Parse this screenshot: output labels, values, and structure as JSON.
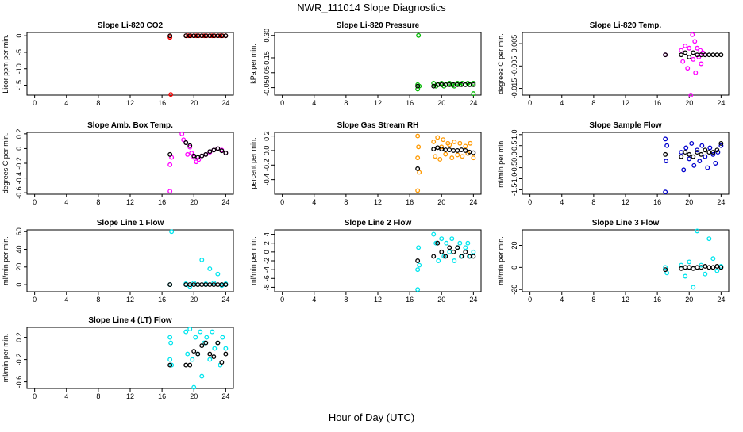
{
  "figure": {
    "title": "NWR_111014  Slope Diagnostics",
    "xlabel": "Hour of Day (UTC)"
  },
  "chart_data": [
    {
      "type": "scatter",
      "title": "Slope Li-820 CO2",
      "ylabel": "Licor ppm per min.",
      "xlim": [
        0,
        24
      ],
      "xticks": [
        0,
        4,
        8,
        12,
        16,
        20,
        24
      ],
      "ylim": [
        -18,
        1
      ],
      "yticks": [
        0,
        -5,
        -10,
        -15
      ],
      "series": [
        {
          "name": "samples",
          "color": "#ff0000",
          "x": [
            17,
            17,
            17.1,
            19,
            19.3,
            19.6,
            20,
            20.3,
            20.6,
            21,
            21.3,
            21.6,
            22,
            22.3,
            22.6,
            23,
            23.3,
            23.6,
            24
          ],
          "y": [
            -0.1,
            -0.5,
            -17.8,
            0,
            0,
            0,
            0,
            0,
            0,
            0,
            0,
            0,
            0,
            0,
            0,
            0,
            0,
            0,
            0
          ]
        },
        {
          "name": "mean",
          "color": "#000000",
          "x": [
            17,
            19,
            19.5,
            20,
            20.5,
            21,
            21.5,
            22,
            22.5,
            23,
            23.5,
            24
          ],
          "y": [
            0,
            0,
            0,
            0,
            0,
            0,
            0,
            0,
            0,
            0,
            0,
            0
          ]
        }
      ]
    },
    {
      "type": "scatter",
      "title": "Slope Li-820 Pressure",
      "ylabel": "kPa per min.",
      "xlim": [
        0,
        24
      ],
      "xticks": [
        0,
        4,
        8,
        12,
        16,
        20,
        24
      ],
      "ylim": [
        -0.1,
        0.32
      ],
      "yticks": [
        0.3,
        0.15,
        0.05,
        -0.05
      ],
      "ytick_labels": [
        "0.30",
        "0.15",
        "0.05",
        "-0.05"
      ],
      "series": [
        {
          "name": "samples",
          "color": "#00b800",
          "x": [
            17,
            17,
            17.1,
            17.2,
            19,
            19.3,
            19.6,
            20,
            20.3,
            20.6,
            21,
            21.3,
            21.6,
            22,
            22.3,
            22.6,
            23,
            23.3,
            23.6,
            24,
            24
          ],
          "y": [
            -0.03,
            -0.06,
            0.3,
            -0.04,
            -0.02,
            -0.04,
            -0.03,
            -0.02,
            -0.04,
            -0.03,
            -0.02,
            -0.03,
            -0.04,
            -0.02,
            -0.03,
            -0.02,
            -0.03,
            -0.02,
            -0.03,
            -0.02,
            -0.09
          ]
        },
        {
          "name": "mean",
          "color": "#000000",
          "x": [
            17,
            19,
            19.5,
            20,
            20.5,
            21,
            21.5,
            22,
            22.5,
            23,
            23.5,
            24
          ],
          "y": [
            -0.04,
            -0.04,
            -0.03,
            -0.03,
            -0.03,
            -0.03,
            -0.03,
            -0.03,
            -0.03,
            -0.03,
            -0.03,
            -0.03
          ]
        }
      ]
    },
    {
      "type": "scatter",
      "title": "Slope Li-820 Temp.",
      "ylabel": "degrees C per min.",
      "xlim": [
        0,
        24
      ],
      "xticks": [
        0,
        4,
        8,
        12,
        16,
        20,
        24
      ],
      "ylim": [
        -0.018,
        0.01
      ],
      "yticks": [
        0.005,
        -0.005,
        -0.015
      ],
      "ytick_labels": [
        "0.005",
        "-0.005",
        "-0.015"
      ],
      "series": [
        {
          "name": "samples",
          "color": "#ff00ff",
          "x": [
            17,
            19,
            19.2,
            19.5,
            19.8,
            20,
            20.2,
            20.4,
            20.5,
            20.7,
            20.8,
            21,
            21.2,
            21.4,
            21.5,
            21.7,
            22
          ],
          "y": [
            0,
            0.002,
            -0.003,
            0.004,
            -0.006,
            0.003,
            -0.018,
            0.009,
            -0.002,
            0.006,
            -0.008,
            0.003,
            -0.001,
            0.002,
            -0.004,
            0.001,
            0
          ]
        },
        {
          "name": "mean",
          "color": "#000000",
          "x": [
            17,
            19,
            19.5,
            20,
            20.5,
            21,
            21.5,
            22,
            22.5,
            23,
            23.5,
            24
          ],
          "y": [
            0,
            0,
            0.001,
            -0.001,
            0.001,
            0,
            0,
            0,
            0,
            0,
            0,
            0
          ]
        }
      ]
    },
    {
      "type": "scatter",
      "title": "Slope Amb. Box Temp.",
      "ylabel": "degrees C per min.",
      "xlim": [
        0,
        24
      ],
      "xticks": [
        0,
        4,
        8,
        12,
        16,
        20,
        24
      ],
      "ylim": [
        -0.62,
        0.22
      ],
      "yticks": [
        0.2,
        0,
        -0.2,
        -0.4,
        -0.6
      ],
      "ytick_labels": [
        "0.2",
        "0",
        "-0.2",
        "-0.4",
        "-0.6"
      ],
      "series": [
        {
          "name": "samples",
          "color": "#ff00ff",
          "x": [
            17,
            17,
            17.2,
            18.5,
            18.7,
            19,
            19.2,
            19.5,
            19.7,
            20,
            20.3,
            20.6,
            21,
            21.5,
            22,
            22.5,
            23,
            23.5,
            24
          ],
          "y": [
            -0.58,
            -0.22,
            -0.12,
            0.2,
            0.12,
            0.08,
            -0.08,
            0.02,
            -0.06,
            -0.12,
            -0.18,
            -0.15,
            -0.1,
            -0.08,
            -0.05,
            -0.02,
            0,
            -0.02,
            -0.06
          ]
        },
        {
          "name": "mean",
          "color": "#000000",
          "x": [
            17,
            19,
            19.5,
            20,
            20.5,
            21,
            21.5,
            22,
            22.5,
            23,
            23.5,
            24
          ],
          "y": [
            -0.08,
            0.08,
            0.04,
            -0.1,
            -0.12,
            -0.1,
            -0.08,
            -0.04,
            -0.02,
            0,
            -0.03,
            -0.06
          ]
        }
      ]
    },
    {
      "type": "scatter",
      "title": "Slope Gas Stream RH",
      "ylabel": "percent per min.",
      "xlim": [
        0,
        24
      ],
      "xticks": [
        0,
        4,
        8,
        12,
        16,
        20,
        24
      ],
      "ylim": [
        -0.6,
        0.25
      ],
      "yticks": [
        0.2,
        0,
        -0.2,
        -0.4
      ],
      "ytick_labels": [
        "0.2",
        "0.0",
        "-0.2",
        "-0.4"
      ],
      "series": [
        {
          "name": "samples",
          "color": "#ff9900",
          "x": [
            17,
            17,
            17,
            17.1,
            17.2,
            19,
            19.2,
            19.5,
            19.8,
            20,
            20.2,
            20.5,
            20.8,
            21,
            21.3,
            21.6,
            22,
            22.3,
            22.6,
            23,
            23.3,
            23.6,
            24
          ],
          "y": [
            -0.55,
            0.2,
            -0.1,
            0.05,
            -0.3,
            0.12,
            -0.08,
            0.18,
            -0.12,
            0.05,
            0.15,
            -0.05,
            0.1,
            0.08,
            -0.1,
            0.12,
            -0.06,
            0.1,
            -0.08,
            0.06,
            -0.04,
            0.1,
            -0.1
          ]
        },
        {
          "name": "mean",
          "color": "#000000",
          "x": [
            17,
            19,
            19.5,
            20,
            20.5,
            21,
            21.5,
            22,
            22.5,
            23,
            23.5,
            24
          ],
          "y": [
            -0.25,
            0.02,
            0.04,
            0.02,
            0.01,
            0.01,
            0.0,
            0.0,
            0.01,
            0.0,
            -0.02,
            -0.03
          ]
        }
      ]
    },
    {
      "type": "scatter",
      "title": "Slope Sample Flow",
      "ylabel": "ml/min per min.",
      "xlim": [
        0,
        24
      ],
      "xticks": [
        0,
        4,
        8,
        12,
        16,
        20,
        24
      ],
      "ylim": [
        -1.7,
        1.1
      ],
      "yticks": [
        1.0,
        0.5,
        0.0,
        -0.5,
        -1.0,
        -1.5
      ],
      "ytick_labels": [
        "1.0",
        "0.5",
        "0.0",
        "-0.5",
        "-1.0",
        "-1.5"
      ],
      "series": [
        {
          "name": "samples",
          "color": "#0000cc",
          "x": [
            17,
            17,
            17.1,
            17.2,
            19,
            19.3,
            19.6,
            20,
            20.3,
            20.6,
            21,
            21.3,
            21.6,
            22,
            22.3,
            22.6,
            23,
            23.3,
            23.6,
            24
          ],
          "y": [
            -1.6,
            0.8,
            -0.2,
            0.5,
            0.2,
            -0.6,
            0.4,
            -0.1,
            0.6,
            -0.4,
            0.3,
            -0.2,
            0.5,
            0.0,
            -0.5,
            0.4,
            0.1,
            -0.3,
            0.2,
            0.5
          ]
        },
        {
          "name": "mean",
          "color": "#000000",
          "x": [
            17,
            19,
            19.5,
            20,
            20.5,
            21,
            21.5,
            22,
            22.5,
            23,
            23.5,
            24
          ],
          "y": [
            0.1,
            0.0,
            0.2,
            0.1,
            0.0,
            0.2,
            0.1,
            0.3,
            0.2,
            0.2,
            0.3,
            0.6
          ]
        }
      ]
    },
    {
      "type": "scatter",
      "title": "Slope Line 1 Flow",
      "ylabel": "ml/min per min.",
      "xlim": [
        0,
        24
      ],
      "xticks": [
        0,
        4,
        8,
        12,
        16,
        20,
        24
      ],
      "ylim": [
        -8,
        62
      ],
      "yticks": [
        60,
        40,
        20,
        0
      ],
      "series": [
        {
          "name": "samples",
          "color": "#00e5ee",
          "x": [
            17,
            17.2,
            19,
            19.5,
            20,
            20.5,
            21,
            21.5,
            22,
            22.5,
            23,
            23.5,
            24
          ],
          "y": [
            0,
            60,
            1,
            -2,
            2,
            0,
            28,
            1,
            18,
            2,
            12,
            -1,
            1
          ]
        },
        {
          "name": "mean",
          "color": "#000000",
          "x": [
            17,
            19,
            19.5,
            20,
            20.5,
            21,
            21.5,
            22,
            22.5,
            23,
            23.5,
            24
          ],
          "y": [
            0,
            0,
            0,
            0,
            0,
            0,
            0,
            0,
            0,
            0,
            0,
            0
          ]
        }
      ]
    },
    {
      "type": "scatter",
      "title": "Slope Line 2 Flow",
      "ylabel": "ml/min per min.",
      "xlim": [
        0,
        24
      ],
      "xticks": [
        0,
        4,
        8,
        12,
        16,
        20,
        24
      ],
      "ylim": [
        -9,
        5
      ],
      "yticks": [
        4,
        2,
        0,
        -2,
        -4,
        -6,
        -8
      ],
      "series": [
        {
          "name": "samples",
          "color": "#00e5ee",
          "x": [
            17,
            17,
            17.1,
            17.2,
            19,
            19.3,
            19.6,
            20,
            20.3,
            20.6,
            21,
            21.3,
            21.6,
            22,
            22.3,
            22.6,
            23,
            23.3,
            23.6,
            24
          ],
          "y": [
            -8.5,
            -4,
            1,
            -3,
            4,
            2,
            -2,
            3,
            -1,
            2,
            0,
            3,
            -2,
            1,
            2,
            -1,
            1,
            2,
            -1,
            0
          ]
        },
        {
          "name": "mean",
          "color": "#000000",
          "x": [
            17,
            19,
            19.5,
            20,
            20.5,
            21,
            21.5,
            22,
            22.5,
            23,
            23.5,
            24
          ],
          "y": [
            -2,
            -1,
            2,
            0,
            -1,
            1,
            0,
            1,
            -1,
            0,
            -1,
            -1
          ]
        }
      ]
    },
    {
      "type": "scatter",
      "title": "Slope Line 3 Flow",
      "ylabel": "ml/min per min.",
      "xlim": [
        0,
        24
      ],
      "xticks": [
        0,
        4,
        8,
        12,
        16,
        20,
        24
      ],
      "ylim": [
        -22,
        34
      ],
      "yticks": [
        20,
        0,
        -20
      ],
      "series": [
        {
          "name": "samples",
          "color": "#00e5ee",
          "x": [
            17,
            17.2,
            19,
            19.5,
            20,
            20.5,
            21,
            21.5,
            22,
            22.5,
            23,
            23.5,
            24
          ],
          "y": [
            0,
            -5,
            2,
            -8,
            5,
            -18,
            33,
            2,
            -6,
            26,
            8,
            -3,
            1
          ]
        },
        {
          "name": "mean",
          "color": "#000000",
          "x": [
            17,
            19,
            19.5,
            20,
            20.5,
            21,
            21.5,
            22,
            22.5,
            23,
            23.5,
            24
          ],
          "y": [
            -2,
            -1,
            0,
            0,
            -1,
            0,
            0,
            1,
            0,
            0,
            1,
            0
          ]
        }
      ]
    },
    {
      "type": "scatter",
      "title": "Slope Line 4 (LT) Flow",
      "ylabel": "ml/min per min.",
      "xlim": [
        0,
        24
      ],
      "xticks": [
        0,
        4,
        8,
        12,
        16,
        20,
        24
      ],
      "ylim": [
        -0.72,
        0.38
      ],
      "yticks": [
        0.2,
        -0.2,
        -0.6
      ],
      "ytick_labels": [
        "0.2",
        "-0.2",
        "-0.6"
      ],
      "series": [
        {
          "name": "samples",
          "color": "#00e5ee",
          "x": [
            17,
            17,
            17.1,
            17.2,
            19,
            19.2,
            19.5,
            19.8,
            20,
            20.2,
            20.5,
            20.8,
            21,
            21.3,
            21.6,
            22,
            22.3,
            22.6,
            23,
            23.3,
            23.6,
            24
          ],
          "y": [
            0.2,
            -0.2,
            0.1,
            -0.3,
            0.3,
            -0.1,
            0.35,
            -0.2,
            -0.7,
            0.2,
            -0.1,
            0.3,
            -0.5,
            0.1,
            0.2,
            -0.2,
            0.3,
            0.0,
            0.1,
            -0.3,
            0.2,
            0.0
          ]
        },
        {
          "name": "mean",
          "color": "#000000",
          "x": [
            17,
            19,
            19.5,
            20,
            20.5,
            21,
            21.5,
            22,
            22.5,
            23,
            23.5,
            24
          ],
          "y": [
            -0.3,
            -0.3,
            -0.3,
            -0.05,
            -0.1,
            0.05,
            0.1,
            -0.1,
            -0.15,
            0.1,
            -0.25,
            -0.1
          ]
        }
      ]
    }
  ]
}
